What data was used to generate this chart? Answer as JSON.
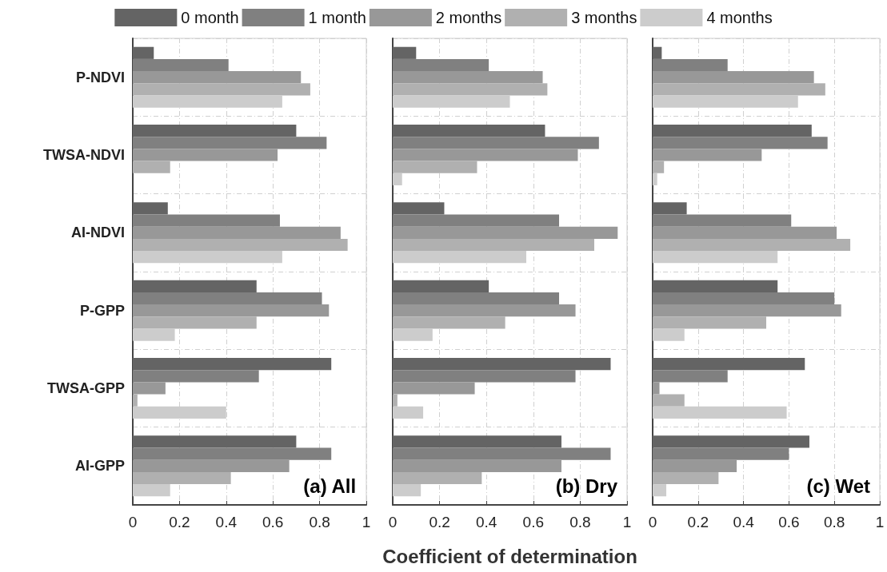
{
  "chart_data": [
    {
      "type": "bar",
      "orientation": "horizontal",
      "categories": [
        "P-NDVI",
        "TWSA-NDVI",
        "AI-NDVI",
        "P-GPP",
        "TWSA-GPP",
        "AI-GPP"
      ],
      "series": [
        {
          "name": "0 month",
          "color": "#646464",
          "values": [
            0.09,
            0.7,
            0.15,
            0.53,
            0.85,
            0.7
          ]
        },
        {
          "name": "1 month",
          "color": "#808080",
          "values": [
            0.41,
            0.83,
            0.63,
            0.81,
            0.54,
            0.85
          ]
        },
        {
          "name": "2 months",
          "color": "#989898",
          "values": [
            0.72,
            0.62,
            0.89,
            0.84,
            0.14,
            0.67
          ]
        },
        {
          "name": "3 months",
          "color": "#b0b0b0",
          "values": [
            0.76,
            0.16,
            0.92,
            0.53,
            0.02,
            0.42
          ]
        },
        {
          "name": "4 months",
          "color": "#cccccc",
          "values": [
            0.64,
            null,
            0.64,
            0.18,
            0.4,
            0.16
          ]
        }
      ],
      "xlim": [
        0,
        1
      ],
      "xticks": [
        0,
        0.2,
        0.4,
        0.6,
        0.8,
        1
      ],
      "grid": true,
      "legend": "top",
      "annotations": [
        "(a) All"
      ]
    },
    {
      "type": "bar",
      "orientation": "horizontal",
      "categories": [
        null,
        null,
        null,
        null,
        null,
        null
      ],
      "series": [
        {
          "color": "#646464",
          "values": [
            0.1,
            0.65,
            0.22,
            0.41,
            0.93,
            0.72
          ]
        },
        {
          "color": "#808080",
          "values": [
            0.41,
            0.88,
            0.71,
            0.71,
            0.78,
            0.93
          ]
        },
        {
          "color": "#989898",
          "values": [
            0.64,
            0.79,
            0.96,
            0.78,
            0.35,
            0.72
          ]
        },
        {
          "color": "#b0b0b0",
          "values": [
            0.66,
            0.36,
            0.86,
            0.48,
            0.02,
            0.38
          ]
        },
        {
          "color": "#cccccc",
          "values": [
            0.5,
            0.04,
            0.57,
            0.17,
            0.13,
            0.12
          ]
        }
      ],
      "xlim": [
        0,
        1
      ],
      "xticks": [
        0,
        0.2,
        0.4,
        0.6,
        0.8,
        1
      ],
      "grid": true,
      "tick_labels": "x",
      "xlabel": "Coefficient of determination",
      "annotations": [
        "(b) Dry"
      ]
    },
    {
      "type": "bar",
      "orientation": "horizontal",
      "categories": [
        null,
        null,
        null,
        null,
        null,
        null
      ],
      "series": [
        {
          "color": "#646464",
          "values": [
            0.04,
            0.7,
            0.15,
            0.55,
            0.67,
            0.69
          ]
        },
        {
          "color": "#808080",
          "values": [
            0.33,
            0.77,
            0.61,
            0.8,
            0.33,
            0.6
          ]
        },
        {
          "color": "#989898",
          "values": [
            0.71,
            0.48,
            0.81,
            0.83,
            0.03,
            0.37
          ]
        },
        {
          "color": "#b0b0b0",
          "values": [
            0.76,
            0.05,
            0.87,
            0.5,
            0.14,
            0.29
          ]
        },
        {
          "color": "#cccccc",
          "values": [
            0.64,
            0.02,
            0.55,
            0.14,
            0.59,
            0.06
          ]
        }
      ],
      "xlim": [
        0,
        1
      ],
      "xticks": [
        0,
        0.2,
        0.4,
        0.6,
        0.8,
        1
      ],
      "grid": true,
      "tick_labels": "x",
      "annotations": [
        "(c) Wet"
      ]
    }
  ]
}
